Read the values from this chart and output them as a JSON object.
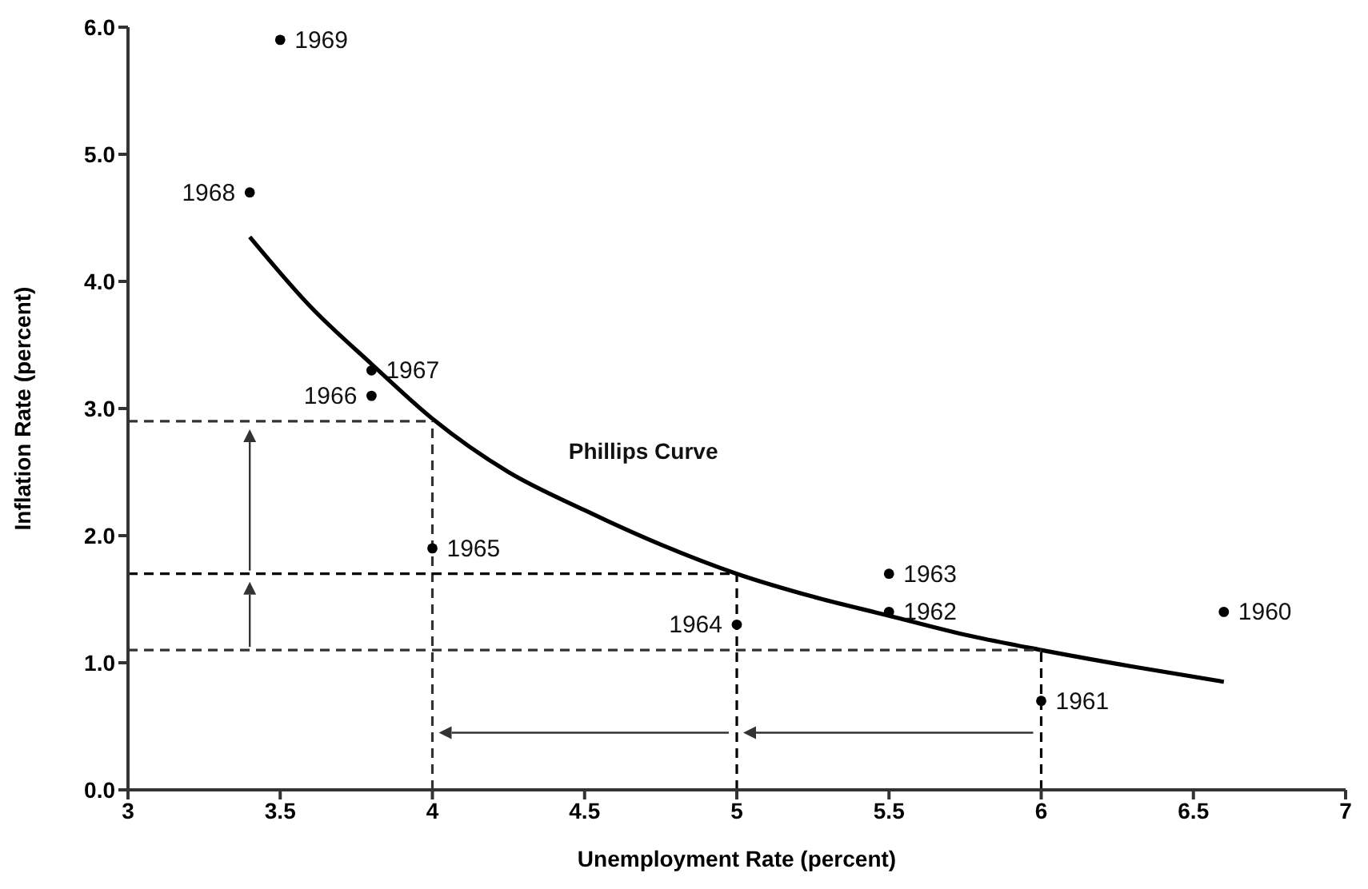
{
  "chart_data": {
    "type": "scatter",
    "xlabel": "Unemployment Rate (percent)",
    "ylabel": "Inflation Rate (percent)",
    "xlim": [
      3,
      7
    ],
    "xticks": [
      3,
      3.5,
      4,
      4.5,
      5,
      5.5,
      6,
      6.5,
      7
    ],
    "ylim": [
      0,
      6
    ],
    "yticks": [
      {
        "value": 0,
        "label": "0.0"
      },
      {
        "value": 1,
        "label": "1.0"
      },
      {
        "value": 2,
        "label": "2.0"
      },
      {
        "value": 3,
        "label": "3.0"
      },
      {
        "value": 4,
        "label": "4.0"
      },
      {
        "value": 5,
        "label": "5.0"
      },
      {
        "value": 6,
        "label": "6.0"
      }
    ],
    "grid": false,
    "legend": false,
    "series": [
      {
        "type": "scatter",
        "color": "#000000",
        "marker": "circle",
        "x": [
          6.6,
          6.0,
          5.5,
          5.5,
          5.0,
          4.0,
          3.8,
          3.8,
          3.4,
          3.5
        ],
        "values": [
          1.4,
          0.7,
          1.4,
          1.7,
          1.3,
          1.9,
          3.1,
          3.3,
          4.7,
          5.9
        ]
      },
      {
        "type": "line",
        "name": "Phillips Curve",
        "color": "#000000",
        "marker": "none",
        "line_style": "solid",
        "x": [
          3.4,
          3.6,
          3.8,
          4.0,
          4.25,
          4.5,
          4.75,
          5.0,
          5.25,
          5.5,
          5.75,
          6.0,
          6.3,
          6.6
        ],
        "values": [
          4.35,
          3.8,
          3.35,
          2.92,
          2.5,
          2.2,
          1.93,
          1.7,
          1.52,
          1.37,
          1.22,
          1.1,
          0.97,
          0.85
        ]
      },
      {
        "type": "line",
        "color": "#333333",
        "marker": "none",
        "line_style": "dashed",
        "x": [
          3,
          4
        ],
        "values": [
          2.9,
          2.9
        ]
      },
      {
        "type": "line",
        "color": "#333333",
        "marker": "none",
        "line_style": "dashed",
        "x": [
          4,
          4
        ],
        "values": [
          0,
          2.9
        ]
      },
      {
        "type": "line",
        "color": "#000000",
        "marker": "none",
        "line_style": "dashed",
        "x": [
          3,
          5
        ],
        "values": [
          1.7,
          1.7
        ]
      },
      {
        "type": "line",
        "color": "#000000",
        "marker": "none",
        "line_style": "dashed",
        "x": [
          5,
          5
        ],
        "values": [
          0,
          1.7
        ]
      },
      {
        "type": "line",
        "color": "#333333",
        "marker": "none",
        "line_style": "dashed",
        "x": [
          3,
          6
        ],
        "values": [
          1.1,
          1.1
        ]
      },
      {
        "type": "line",
        "color": "#000000",
        "marker": "none",
        "line_style": "dashed",
        "x": [
          6,
          6
        ],
        "values": [
          0,
          1.1
        ]
      }
    ],
    "annotations": [
      {
        "text": "1960",
        "x": 6.6,
        "y": 1.4
      },
      {
        "text": "1961",
        "x": 6.0,
        "y": 0.7
      },
      {
        "text": "1962",
        "x": 5.5,
        "y": 1.4
      },
      {
        "text": "1963",
        "x": 5.5,
        "y": 1.7
      },
      {
        "text": "1964",
        "x": 5.0,
        "y": 1.3
      },
      {
        "text": "1965",
        "x": 4.0,
        "y": 1.9
      },
      {
        "text": "1966",
        "x": 3.8,
        "y": 3.1
      },
      {
        "text": "1967",
        "x": 3.8,
        "y": 3.3
      },
      {
        "text": "1968",
        "x": 3.4,
        "y": 4.7
      },
      {
        "text": "1969",
        "x": 3.5,
        "y": 5.9
      }
    ]
  }
}
